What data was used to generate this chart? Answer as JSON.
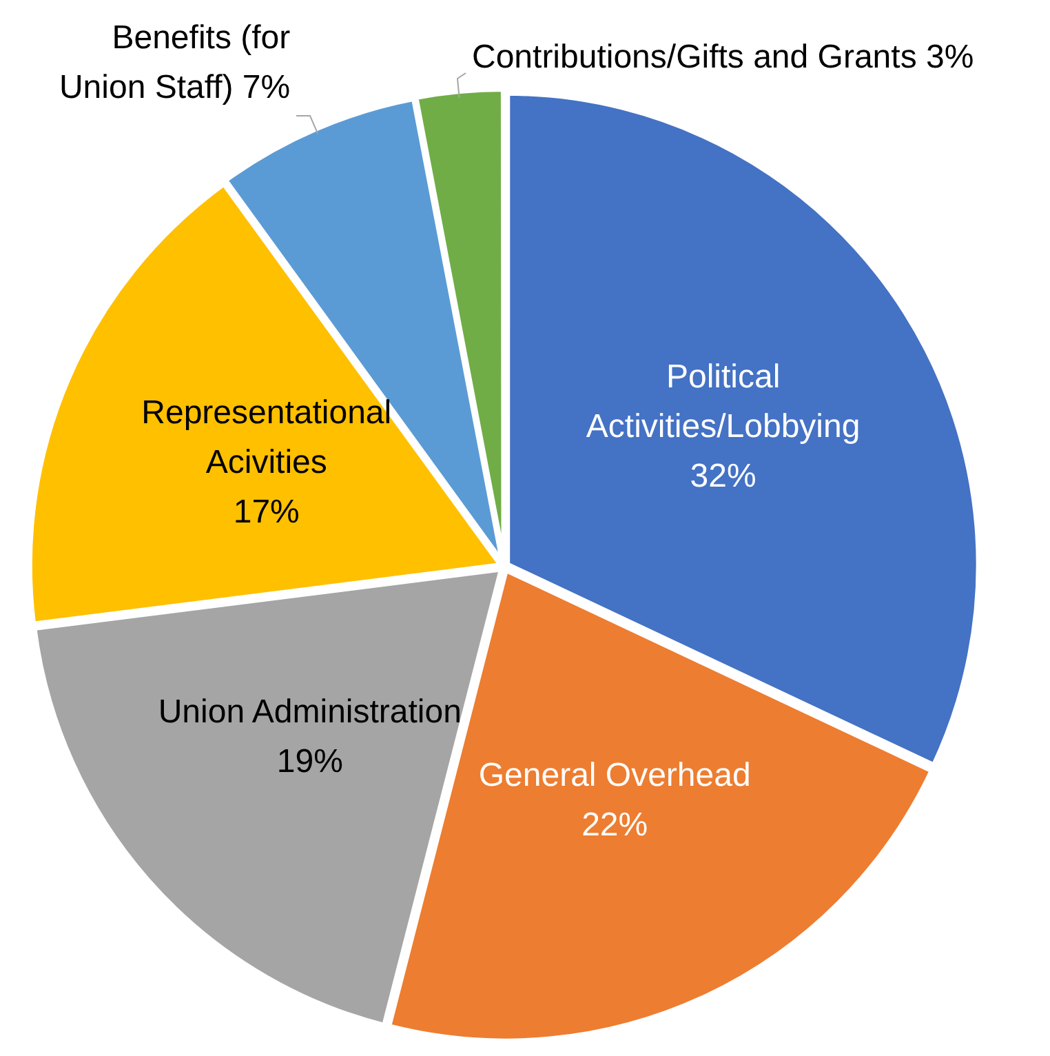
{
  "chart_data": {
    "type": "pie",
    "categories": [
      "Political Activities/Lobbying",
      "General Overhead",
      "Union Administration",
      "Representational Acivities",
      "Benefits (for Union Staff)",
      "Contributions/Gifts and Grants"
    ],
    "values": [
      32,
      22,
      19,
      17,
      7,
      3
    ],
    "colors": [
      "#4472c4",
      "#ed7d31",
      "#a5a5a5",
      "#ffc000",
      "#5b9bd5",
      "#70ad47"
    ],
    "value_labels": [
      "32%",
      "22%",
      "19%",
      "17%",
      "7%",
      "3%"
    ],
    "legend": false
  }
}
